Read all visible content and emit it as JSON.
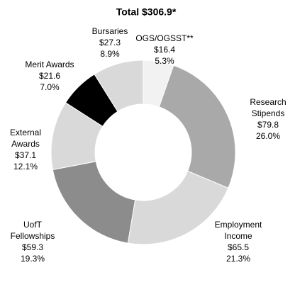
{
  "chart_data": {
    "type": "donut",
    "title": "Total $306.9*",
    "categories": [
      [
        "OGS/OGSST**"
      ],
      [
        "Research",
        "Stipends"
      ],
      [
        "Employment",
        "Income"
      ],
      [
        "UofT",
        "Fellowships"
      ],
      [
        "External",
        "Awards"
      ],
      [
        "Merit Awards"
      ],
      [
        "Bursaries"
      ]
    ],
    "values": [
      16.4,
      79.8,
      65.5,
      59.3,
      37.1,
      21.6,
      27.3
    ],
    "value_labels": [
      "$16.4",
      "$79.8",
      "$65.5",
      "$59.3",
      "$37.1",
      "$21.6",
      "$27.3"
    ],
    "percentages": [
      5.3,
      26.0,
      21.3,
      19.3,
      12.1,
      7.0,
      8.9
    ],
    "percentage_labels": [
      "5.3%",
      "26.0%",
      "21.3%",
      "19.3%",
      "12.1%",
      "7.0%",
      "8.9%"
    ],
    "colors": [
      "#f2f2f2",
      "#a9a9a9",
      "#d9d9d9",
      "#8c8c8c",
      "#d9d9d9",
      "#000000",
      "#d9d9d9"
    ]
  }
}
